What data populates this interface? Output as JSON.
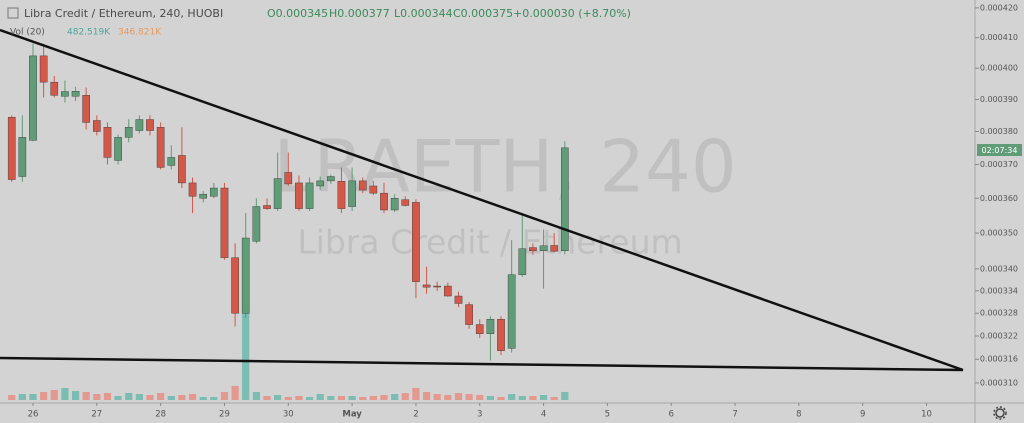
{
  "chart_data": {
    "type": "candlestick",
    "title": "Libra Credit / Ethereum, 240, HUOBI",
    "ohlc_labels": [
      "O0.000345",
      "H0.000377",
      "L0.000344",
      "C0.000375"
    ],
    "change_label": "+0.000030 (+8.70%)",
    "volume_legend": {
      "name": "Vol (20)",
      "value": "482.519K",
      "ma": "346.821K"
    },
    "watermark": "LRAETH, 240",
    "watermark_subtitle": "Libra Credit / Ethereum",
    "countdown": "02:07:34",
    "log_scale": true,
    "grid": false,
    "up_color": "#5f9c77",
    "down_color": "#d2584a",
    "volume_up_color": "#7bbcb3",
    "volume_down_color": "#e3998f",
    "x": [
      -0.333,
      -0.167,
      0,
      0.167,
      0.333,
      0.5,
      0.667,
      0.833,
      1,
      1.167,
      1.333,
      1.5,
      1.667,
      1.833,
      2,
      2.167,
      2.333,
      2.5,
      2.667,
      2.833,
      3,
      3.167,
      3.333,
      3.5,
      3.667,
      3.833,
      4,
      4.167,
      4.333,
      4.5,
      4.667,
      4.833,
      5,
      5.167,
      5.333,
      5.5,
      5.667,
      5.833,
      6,
      6.167,
      6.333,
      6.5,
      6.667,
      6.833,
      7,
      7.167,
      7.333,
      7.5,
      7.667,
      7.833,
      8,
      8.167,
      8.333
    ],
    "open": [
      0.0003844,
      0.0003664,
      0.0003773,
      0.000404,
      0.0003955,
      0.000391,
      0.000391,
      0.0003913,
      0.0003834,
      0.0003813,
      0.0003712,
      0.0003782,
      0.0003803,
      0.0003837,
      0.0003813,
      0.0003697,
      0.0003727,
      0.0003645,
      0.00036,
      0.0003606,
      0.000363,
      0.0003431,
      0.000328,
      0.0003477,
      0.0003579,
      0.000357,
      0.0003676,
      0.0003645,
      0.000357,
      0.0003636,
      0.0003651,
      0.000365,
      0.0003576,
      0.0003651,
      0.0003636,
      0.0003615,
      0.0003566,
      0.0003596,
      0.0003588,
      0.0003356,
      0.0003353,
      0.0003353,
      0.0003326,
      0.0003303,
      0.000325,
      0.0003226,
      0.0003264,
      0.0003188,
      0.0003384,
      0.0003459,
      0.000345,
      0.0003465,
      0.000345
    ],
    "high": [
      0.000385,
      0.000385,
      0.000408,
      0.000408,
      0.0003975,
      0.000396,
      0.000394,
      0.0003938,
      0.000385,
      0.0003828,
      0.0003791,
      0.0003838,
      0.000385,
      0.000385,
      0.0003828,
      0.0003758,
      0.0003813,
      0.0003661,
      0.0003621,
      0.0003645,
      0.0003645,
      0.0003471,
      0.0003557,
      0.00036,
      0.00036,
      0.0003736,
      0.0003736,
      0.0003667,
      0.0003661,
      0.0003664,
      0.000367,
      0.0003691,
      0.0003691,
      0.0003661,
      0.0003651,
      0.0003645,
      0.0003612,
      0.0003606,
      0.0003597,
      0.0003406,
      0.0003365,
      0.0003362,
      0.0003338,
      0.000331,
      0.0003264,
      0.0003272,
      0.0003272,
      0.000348,
      0.0003557,
      0.0003471,
      0.000351,
      0.00035,
      0.000377
    ],
    "low": [
      0.0003648,
      0.0003648,
      0.000377,
      0.0003906,
      0.0003906,
      0.000389,
      0.0003895,
      0.0003806,
      0.0003788,
      0.00037,
      0.00037,
      0.0003767,
      0.0003794,
      0.0003788,
      0.0003685,
      0.0003685,
      0.000363,
      0.0003557,
      0.0003588,
      0.00036,
      0.0003425,
      0.0003245,
      0.0003267,
      0.0003471,
      0.0003566,
      0.0003563,
      0.0003636,
      0.0003563,
      0.0003563,
      0.0003624,
      0.0003642,
      0.0003557,
      0.0003563,
      0.0003615,
      0.0003609,
      0.0003557,
      0.000356,
      0.0003576,
      0.000332,
      0.0003332,
      0.000334,
      0.0003324,
      0.0003296,
      0.0003239,
      0.0003215,
      0.0003157,
      0.0003171,
      0.0003177,
      0.0003378,
      0.0003439,
      0.0003346,
      0.0003446,
      0.000344
    ],
    "close": [
      0.0003655,
      0.0003782,
      0.000404,
      0.0003955,
      0.0003913,
      0.0003925,
      0.0003926,
      0.0003828,
      0.00038,
      0.0003721,
      0.0003782,
      0.0003813,
      0.0003837,
      0.0003803,
      0.0003691,
      0.0003721,
      0.0003645,
      0.0003606,
      0.0003612,
      0.000363,
      0.0003431,
      0.000328,
      0.0003486,
      0.0003576,
      0.000357,
      0.0003658,
      0.0003642,
      0.000357,
      0.0003645,
      0.0003651,
      0.0003664,
      0.000357,
      0.0003651,
      0.0003624,
      0.0003615,
      0.0003566,
      0.00036,
      0.0003579,
      0.0003365,
      0.000335,
      0.0003352,
      0.0003326,
      0.0003306,
      0.000325,
      0.0003226,
      0.0003264,
      0.0003182,
      0.0003384,
      0.0003456,
      0.000345,
      0.0003464,
      0.0003449,
      0.000375
    ],
    "volume": [
      300,
      360,
      360,
      480,
      600,
      720,
      540,
      480,
      360,
      420,
      240,
      420,
      360,
      300,
      420,
      240,
      300,
      360,
      180,
      180,
      480,
      840,
      5820,
      480,
      240,
      300,
      180,
      240,
      180,
      360,
      240,
      240,
      240,
      180,
      240,
      300,
      360,
      420,
      720,
      480,
      360,
      300,
      420,
      360,
      300,
      240,
      180,
      360,
      240,
      240,
      300,
      180,
      482.519
    ],
    "xlim": [
      -0.517,
      14.76
    ],
    "xticks": [
      {
        "value": 0,
        "label": "26"
      },
      {
        "value": 1,
        "label": "27"
      },
      {
        "value": 2,
        "label": "28"
      },
      {
        "value": 3,
        "label": "29"
      },
      {
        "value": 4,
        "label": "30"
      },
      {
        "value": 5,
        "label": "May"
      },
      {
        "value": 6,
        "label": "2"
      },
      {
        "value": 7,
        "label": "3"
      },
      {
        "value": 8,
        "label": "4"
      },
      {
        "value": 9,
        "label": "5"
      },
      {
        "value": 10,
        "label": "6"
      },
      {
        "value": 11,
        "label": "7"
      },
      {
        "value": 12,
        "label": "8"
      },
      {
        "value": 13,
        "label": "9"
      },
      {
        "value": 14,
        "label": "10"
      }
    ],
    "ylim": [
      0.000305,
      0.0004227
    ],
    "yticks": [
      {
        "value": 0.00042,
        "label": "0.000420"
      },
      {
        "value": 0.00041,
        "label": "0.000410"
      },
      {
        "value": 0.0004,
        "label": "0.000400"
      },
      {
        "value": 0.00039,
        "label": "0.000390"
      },
      {
        "value": 0.00038,
        "label": "0.000380"
      },
      {
        "value": 0.00037,
        "label": "0.000370"
      },
      {
        "value": 0.00036,
        "label": "0.000360"
      },
      {
        "value": 0.00035,
        "label": "0.000350"
      },
      {
        "value": 0.00034,
        "label": "0.000340"
      },
      {
        "value": 0.000334,
        "label": "0.000334"
      },
      {
        "value": 0.000328,
        "label": "0.000328"
      },
      {
        "value": 0.000322,
        "label": "0.000322"
      },
      {
        "value": 0.000316,
        "label": "0.000316"
      },
      {
        "value": 0.00031,
        "label": "0.000310"
      }
    ]
  }
}
